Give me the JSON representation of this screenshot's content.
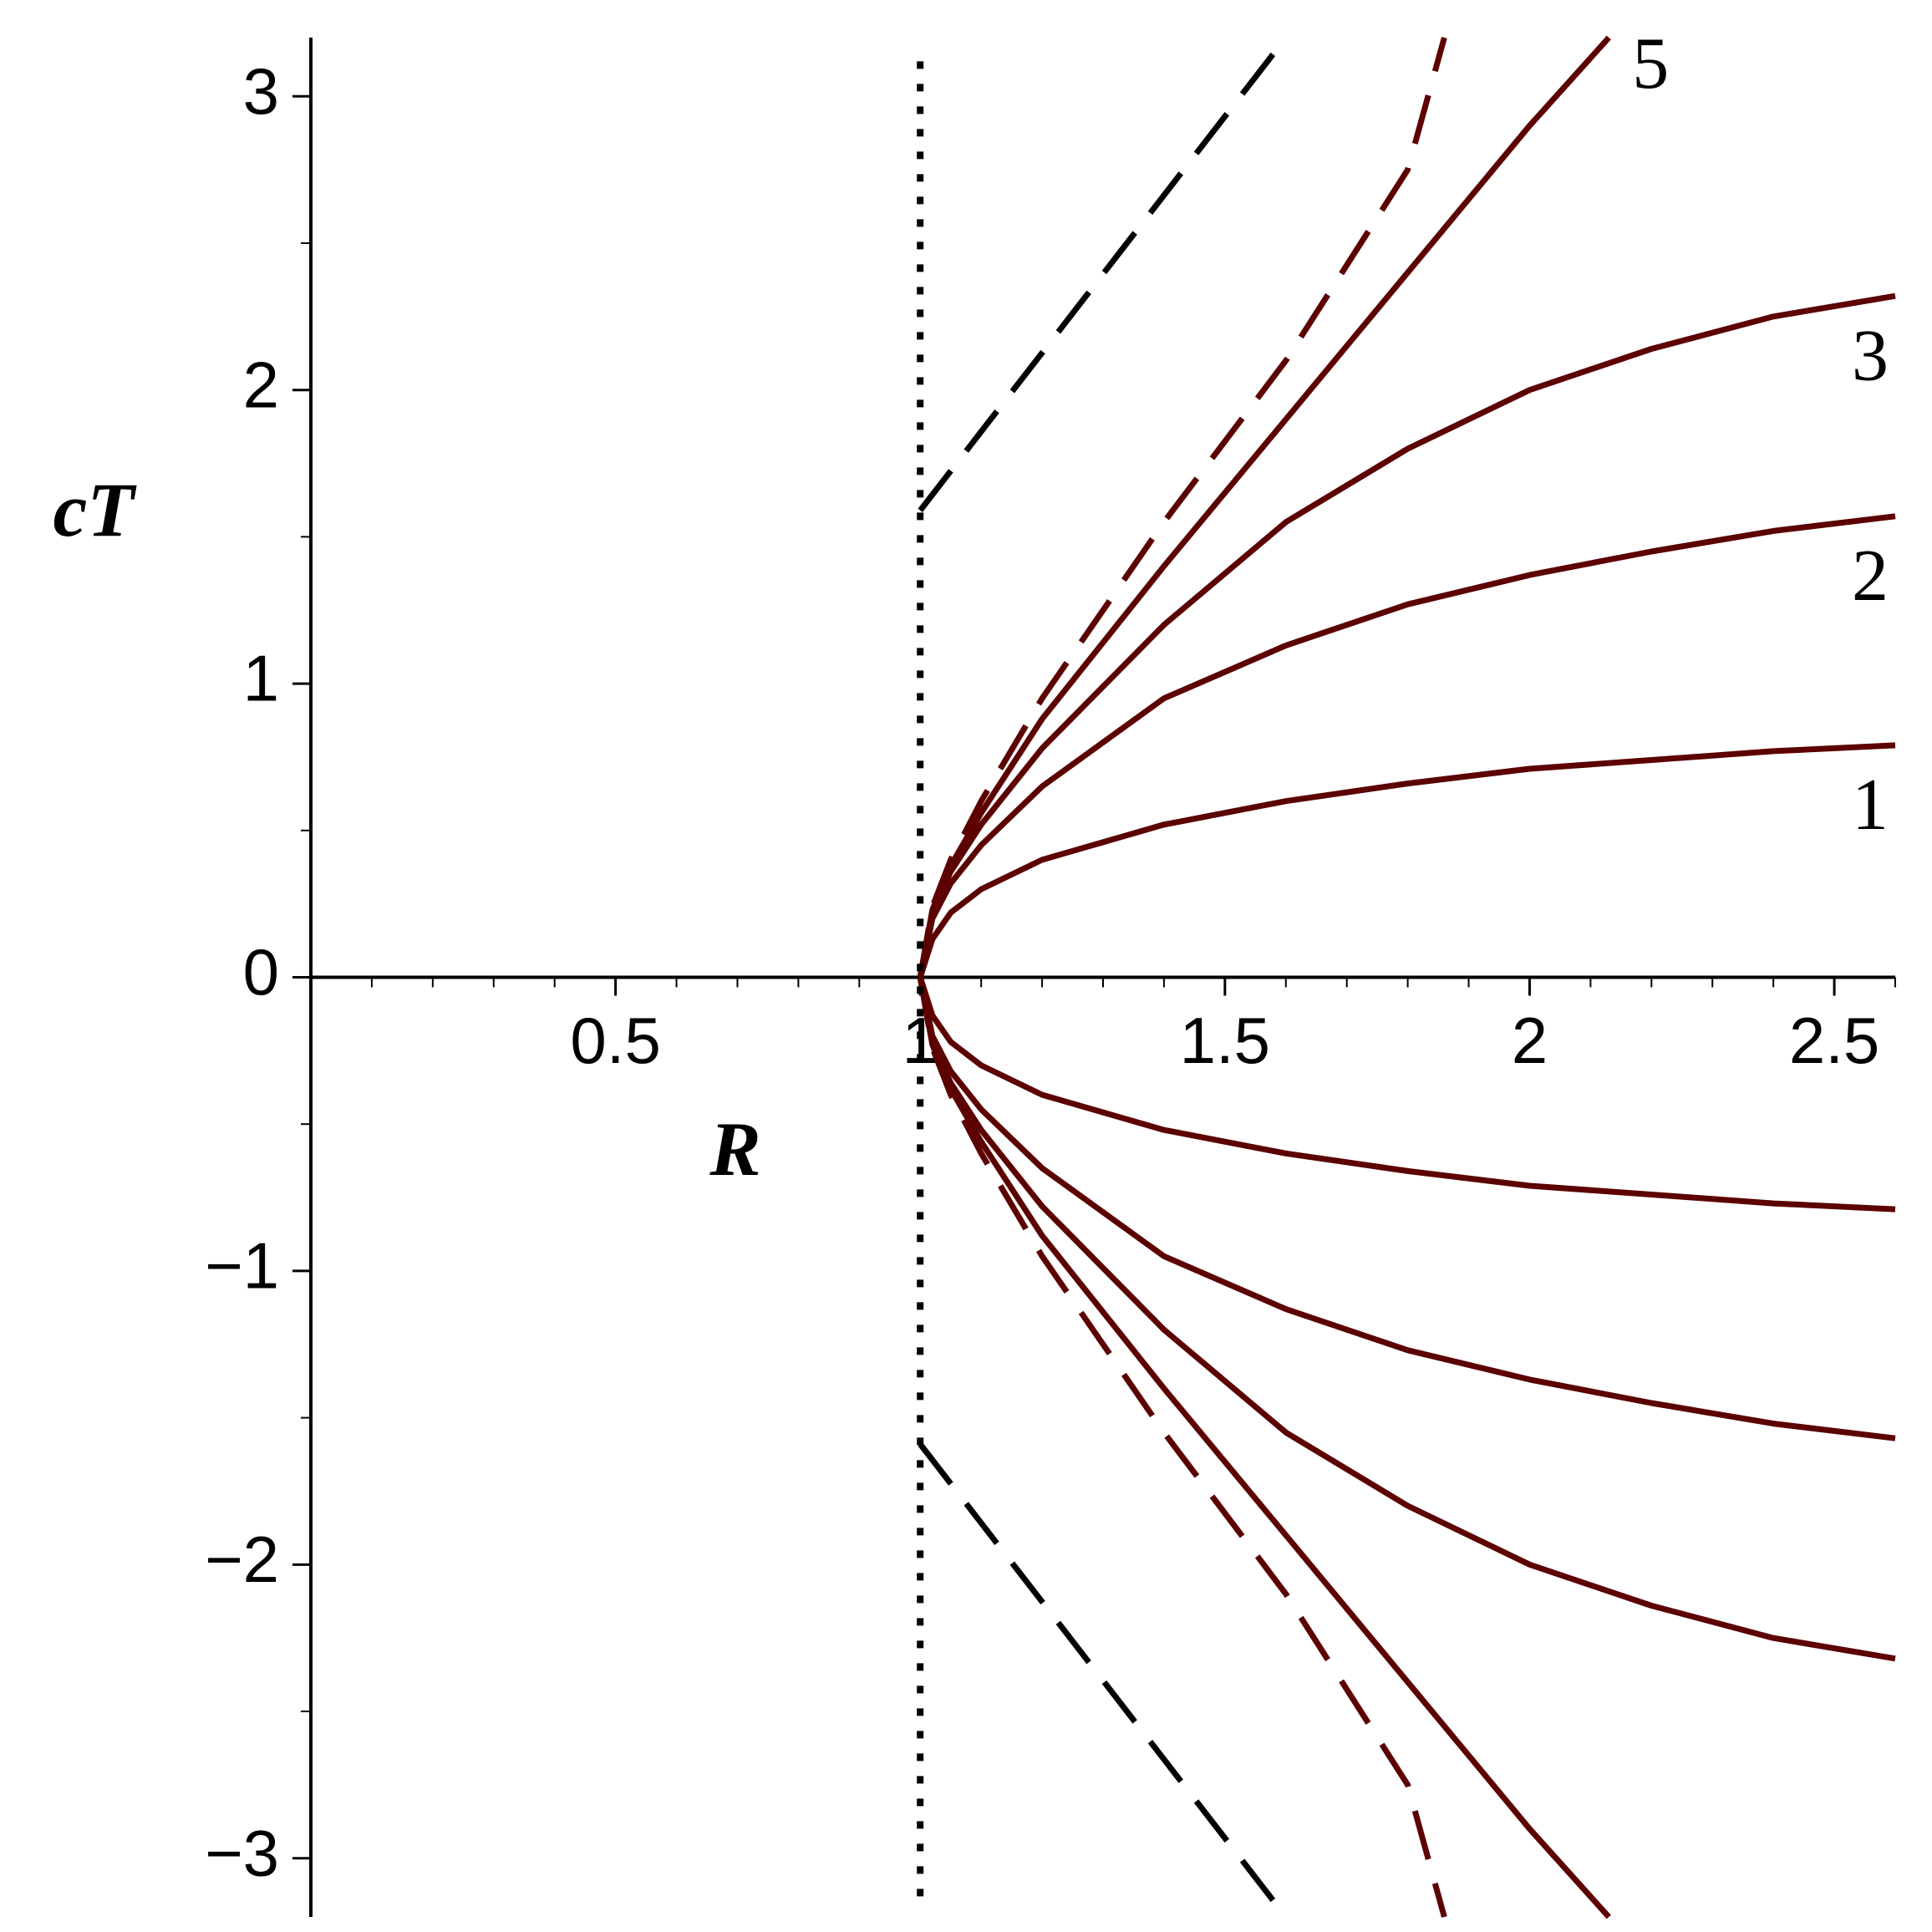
{
  "chart_data": {
    "type": "line",
    "xlabel": "R",
    "ylabel": "cT",
    "xlim": [
      0,
      2.6
    ],
    "ylim": [
      -3.2,
      3.2
    ],
    "xticks": [
      0.5,
      1,
      1.5,
      2,
      2.5
    ],
    "yticks": [
      {
        "value": -3,
        "label": "−3"
      },
      {
        "value": -2,
        "label": "−2"
      },
      {
        "value": -1,
        "label": "−1"
      },
      0,
      1,
      2,
      3
    ],
    "xminorticks": [
      0.1,
      0.2,
      0.3,
      0.4,
      0.6,
      0.7,
      0.8,
      0.9,
      1.1,
      1.2,
      1.3,
      1.4,
      1.6,
      1.7,
      1.8,
      1.9,
      2.1,
      2.2,
      2.3,
      2.4,
      2.6
    ],
    "yminorticks": [
      -2.5,
      -1.5,
      -0.5,
      0.5,
      1.5,
      2.5
    ],
    "series": [
      {
        "name": "1",
        "color": "#5c0000",
        "style": "solid",
        "x": [
          1,
          1.02,
          1.05,
          1.1,
          1.2,
          1.4,
          1.6,
          1.8,
          2.0,
          2.2,
          2.4,
          2.6
        ],
        "values": [
          0,
          0.13,
          0.22,
          0.3,
          0.4,
          0.52,
          0.6,
          0.66,
          0.71,
          0.74,
          0.77,
          0.79
        ]
      },
      {
        "color": "#5c0000",
        "style": "solid",
        "x": [
          1,
          1.02,
          1.05,
          1.1,
          1.2,
          1.4,
          1.6,
          1.8,
          2.0,
          2.2,
          2.4,
          2.6
        ],
        "values": [
          0,
          -0.13,
          -0.22,
          -0.3,
          -0.4,
          -0.52,
          -0.6,
          -0.66,
          -0.71,
          -0.74,
          -0.77,
          -0.79
        ]
      },
      {
        "name": "2",
        "color": "#5c0000",
        "style": "solid",
        "x": [
          1,
          1.02,
          1.05,
          1.1,
          1.2,
          1.4,
          1.6,
          1.8,
          2.0,
          2.2,
          2.4,
          2.6
        ],
        "values": [
          0,
          0.2,
          0.32,
          0.45,
          0.65,
          0.95,
          1.13,
          1.27,
          1.37,
          1.45,
          1.52,
          1.57
        ]
      },
      {
        "color": "#5c0000",
        "style": "solid",
        "x": [
          1,
          1.02,
          1.05,
          1.1,
          1.2,
          1.4,
          1.6,
          1.8,
          2.0,
          2.2,
          2.4,
          2.6
        ],
        "values": [
          0,
          -0.2,
          -0.32,
          -0.45,
          -0.65,
          -0.95,
          -1.13,
          -1.27,
          -1.37,
          -1.45,
          -1.52,
          -1.57
        ]
      },
      {
        "name": "3",
        "color": "#5c0000",
        "style": "solid",
        "x": [
          1,
          1.02,
          1.05,
          1.1,
          1.2,
          1.4,
          1.6,
          1.8,
          2.0,
          2.2,
          2.4,
          2.6
        ],
        "values": [
          0,
          0.22,
          0.36,
          0.52,
          0.78,
          1.2,
          1.55,
          1.8,
          2.0,
          2.14,
          2.25,
          2.32
        ]
      },
      {
        "color": "#5c0000",
        "style": "solid",
        "x": [
          1,
          1.02,
          1.05,
          1.1,
          1.2,
          1.4,
          1.6,
          1.8,
          2.0,
          2.2,
          2.4,
          2.6
        ],
        "values": [
          0,
          -0.22,
          -0.36,
          -0.52,
          -0.78,
          -1.2,
          -1.55,
          -1.8,
          -2.0,
          -2.14,
          -2.25,
          -2.32
        ]
      },
      {
        "name": "5",
        "color": "#5c0000",
        "style": "solid",
        "x": [
          1,
          1.02,
          1.05,
          1.1,
          1.2,
          1.4,
          1.6,
          1.8,
          2.0,
          2.13
        ],
        "values": [
          0,
          0.23,
          0.38,
          0.56,
          0.88,
          1.4,
          1.9,
          2.4,
          2.9,
          3.2
        ]
      },
      {
        "color": "#5c0000",
        "style": "solid",
        "x": [
          1,
          1.02,
          1.05,
          1.1,
          1.2,
          1.4,
          1.6,
          1.8,
          2.0,
          2.13
        ],
        "values": [
          0,
          -0.23,
          -0.38,
          -0.56,
          -0.88,
          -1.4,
          -1.9,
          -2.4,
          -2.9,
          -3.2
        ]
      },
      {
        "color": "#5c0000",
        "style": "dashed",
        "x": [
          1,
          1.02,
          1.05,
          1.1,
          1.2,
          1.4,
          1.6,
          1.8,
          1.86
        ],
        "values": [
          0,
          0.24,
          0.4,
          0.6,
          0.95,
          1.55,
          2.1,
          2.75,
          3.2
        ]
      },
      {
        "color": "#5c0000",
        "style": "dashed",
        "x": [
          1,
          1.02,
          1.05,
          1.1,
          1.2,
          1.4,
          1.6,
          1.8,
          1.86
        ],
        "values": [
          0,
          -0.24,
          -0.4,
          -0.6,
          -0.95,
          -1.55,
          -2.1,
          -2.75,
          -3.2
        ]
      },
      {
        "color": "#000000",
        "style": "dashed",
        "x": [
          1,
          1.6
        ],
        "values": [
          1.59,
          3.2
        ]
      },
      {
        "color": "#000000",
        "style": "dashed",
        "x": [
          1,
          1.6
        ],
        "values": [
          -1.59,
          -3.2
        ]
      },
      {
        "color": "#000000",
        "style": "dotted",
        "x": [
          1,
          1
        ],
        "values": [
          -3.13,
          3.13
        ]
      }
    ]
  }
}
